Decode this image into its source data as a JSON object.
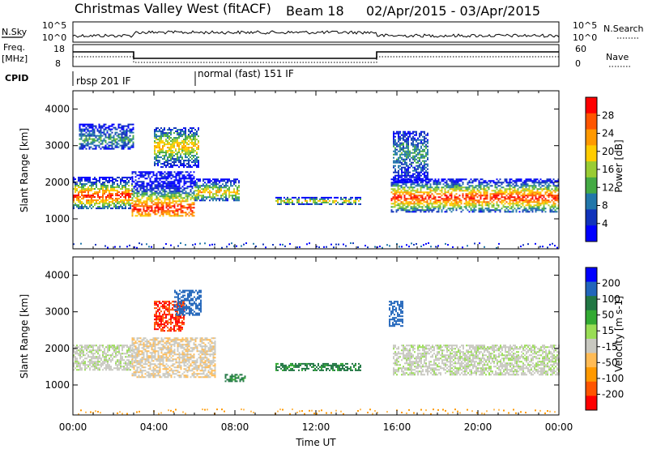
{
  "header": {
    "station": "Christmas Valley West (fitACF)",
    "beam": "Beam 18",
    "date_range": "02/Apr/2015 - 03/Apr/2015"
  },
  "top_panels": {
    "nsky_label": "N.Sky",
    "nsearch_label": "N.Search",
    "left_ticks": [
      "10^5",
      "10^0"
    ],
    "right_ticks": [
      "10^5",
      "10^0"
    ],
    "freq_label_1": "Freq.",
    "freq_label_2": "[MHz]",
    "freq_ticks": [
      "18",
      "8"
    ],
    "nave_label": "Nave",
    "nave_ticks": [
      "60",
      "0"
    ],
    "cpid_label": "CPID",
    "cpid_mode_1": "rbsp 201 IF",
    "cpid_mode_2": "normal (fast) 151 IF"
  },
  "colorbars": {
    "power": {
      "label": "Power [dB]",
      "ticks": [
        "28",
        "24",
        "20",
        "16",
        "12",
        "8",
        "4"
      ],
      "colors": [
        "#ff0000",
        "#ff5500",
        "#ff9900",
        "#ffcc00",
        "#99cc33",
        "#44aa44",
        "#2277aa",
        "#1133bb",
        "#0000ff"
      ]
    },
    "velocity": {
      "label": "Velocity [m s-1]",
      "ticks": [
        "200",
        "100",
        "50",
        "15",
        "-15",
        "-50",
        "-100",
        "-200"
      ],
      "colors": [
        "#0000ff",
        "#2266bb",
        "#227744",
        "#33aa33",
        "#99dd55",
        "#c8c8c0",
        "#ffbb55",
        "#ff9900",
        "#ff5500",
        "#ff0000"
      ]
    }
  },
  "axes": {
    "ylabel": "Slant Range [km]",
    "xlabel": "Time UT",
    "x_ticks": [
      "00:00",
      "04:00",
      "08:00",
      "12:00",
      "16:00",
      "20:00",
      "00:00"
    ],
    "y_ticks": [
      "4000",
      "3000",
      "2000",
      "1000"
    ]
  },
  "chart_data": [
    {
      "type": "heatmap",
      "title": "",
      "xlabel": "",
      "ylabel": "Slant Range [km]",
      "xlim_hours": [
        0,
        24
      ],
      "ylim": [
        180,
        4500
      ],
      "colorbar_label": "Power [dB]",
      "scatter_regions": [
        {
          "t0": 0.0,
          "t1": 2.9,
          "r0": 1300,
          "r1": 2150,
          "core": 1650,
          "value": "high"
        },
        {
          "t0": 2.9,
          "t1": 6.0,
          "r0": 1100,
          "r1": 2300,
          "core": 1300,
          "value": "high"
        },
        {
          "t0": 6.0,
          "t1": 8.2,
          "r0": 1500,
          "r1": 2100,
          "core": 1750,
          "value": "medium"
        },
        {
          "t0": 10.0,
          "t1": 14.2,
          "r0": 1400,
          "r1": 1600,
          "core": 1500,
          "value": "medium"
        },
        {
          "t0": 15.7,
          "t1": 24.0,
          "r0": 1200,
          "r1": 2100,
          "core": 1600,
          "value": "high"
        },
        {
          "t0": 0.3,
          "t1": 3.0,
          "r0": 2900,
          "r1": 3600,
          "core": 3200,
          "value": "low"
        },
        {
          "t0": 4.0,
          "t1": 6.2,
          "r0": 2400,
          "r1": 3500,
          "core": 3000,
          "value": "medium"
        },
        {
          "t0": 15.8,
          "t1": 17.5,
          "r0": 2000,
          "r1": 3400,
          "core": 2800,
          "value": "low"
        }
      ]
    },
    {
      "type": "heatmap",
      "title": "",
      "xlabel": "Time UT",
      "ylabel": "Slant Range [km]",
      "xlim_hours": [
        0,
        24
      ],
      "ylim": [
        180,
        4500
      ],
      "colorbar_label": "Velocity [m s-1]",
      "scatter_regions": [
        {
          "t0": 0.0,
          "t1": 2.9,
          "r0": 1400,
          "r1": 2100,
          "value_ms": 0
        },
        {
          "t0": 2.9,
          "t1": 7.0,
          "r0": 1200,
          "r1": 2300,
          "value_ms": -10
        },
        {
          "t0": 4.0,
          "t1": 5.5,
          "r0": 2500,
          "r1": 3300,
          "value_ms": -200
        },
        {
          "t0": 5.0,
          "t1": 6.3,
          "r0": 2900,
          "r1": 3600,
          "value_ms": 150
        },
        {
          "t0": 7.5,
          "t1": 8.5,
          "r0": 1100,
          "r1": 1300,
          "value_ms": 60
        },
        {
          "t0": 10.0,
          "t1": 14.2,
          "r0": 1400,
          "r1": 1600,
          "value_ms": 60
        },
        {
          "t0": 15.8,
          "t1": 24.0,
          "r0": 1300,
          "r1": 2100,
          "value_ms": 0
        },
        {
          "t0": 15.6,
          "t1": 16.3,
          "r0": 2600,
          "r1": 3300,
          "value_ms": 180
        }
      ]
    }
  ]
}
